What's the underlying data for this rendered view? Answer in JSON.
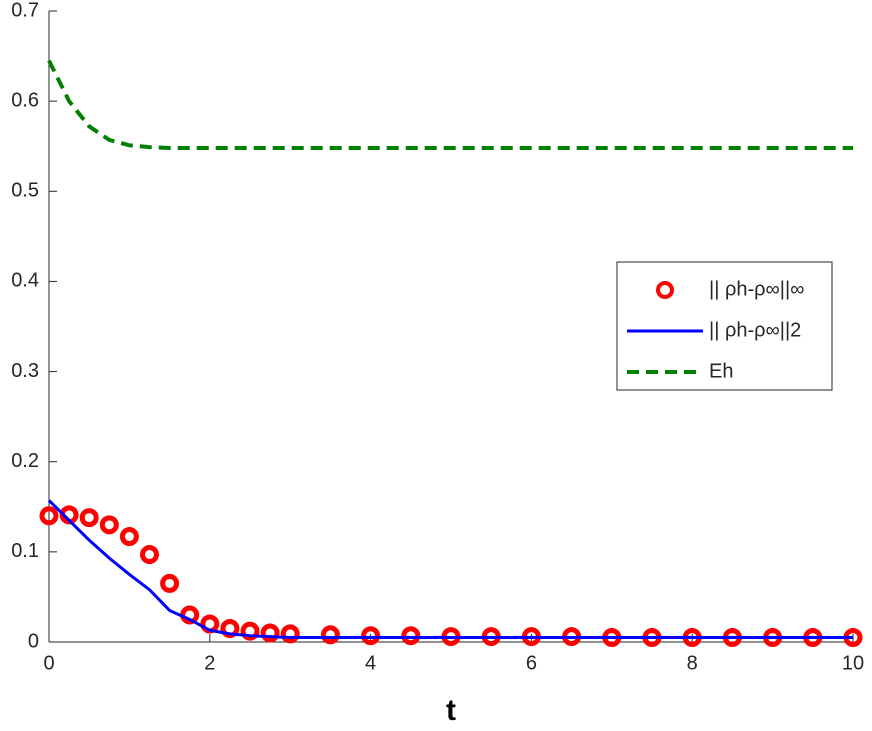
{
  "chart_data": {
    "type": "line",
    "x_label": "t",
    "x": [
      0,
      0.25,
      0.5,
      0.75,
      1,
      1.25,
      1.5,
      1.75,
      2,
      2.25,
      2.5,
      2.75,
      3,
      3.5,
      4,
      4.5,
      5,
      5.5,
      6,
      6.5,
      7,
      7.5,
      8,
      8.5,
      9,
      9.5,
      10
    ],
    "series": [
      {
        "name": "|| ρh-ρ∞||∞",
        "color": "#ff0000",
        "style": "markers",
        "values": [
          0.14,
          0.141,
          0.138,
          0.13,
          0.117,
          0.097,
          0.065,
          0.03,
          0.02,
          0.015,
          0.012,
          0.01,
          0.009,
          0.008,
          0.007,
          0.007,
          0.006,
          0.006,
          0.006,
          0.006,
          0.005,
          0.005,
          0.005,
          0.005,
          0.005,
          0.005,
          0.005
        ]
      },
      {
        "name": "|| ρh-ρ∞||2",
        "color": "#0000ff",
        "style": "solid",
        "values": [
          0.157,
          0.135,
          0.113,
          0.093,
          0.075,
          0.058,
          0.035,
          0.025,
          0.013,
          0.009,
          0.007,
          0.006,
          0.005,
          0.005,
          0.005,
          0.005,
          0.005,
          0.005,
          0.005,
          0.005,
          0.005,
          0.005,
          0.005,
          0.005,
          0.005,
          0.005,
          0.005
        ]
      },
      {
        "name": "Eh",
        "color": "#007f00",
        "style": "dashed",
        "values": [
          0.645,
          0.6,
          0.572,
          0.557,
          0.551,
          0.549,
          0.548,
          0.548,
          0.548,
          0.548,
          0.548,
          0.548,
          0.548,
          0.548,
          0.548,
          0.548,
          0.548,
          0.548,
          0.548,
          0.548,
          0.548,
          0.548,
          0.548,
          0.548,
          0.548,
          0.548,
          0.548
        ]
      }
    ],
    "xlim": [
      0,
      10
    ],
    "xticks": [
      0,
      2,
      4,
      6,
      8,
      10
    ],
    "ylim": [
      0,
      0.7
    ],
    "yticks": [
      0,
      0.1,
      0.2,
      0.3,
      0.4,
      0.5,
      0.6,
      0.7
    ],
    "legend": "right"
  }
}
